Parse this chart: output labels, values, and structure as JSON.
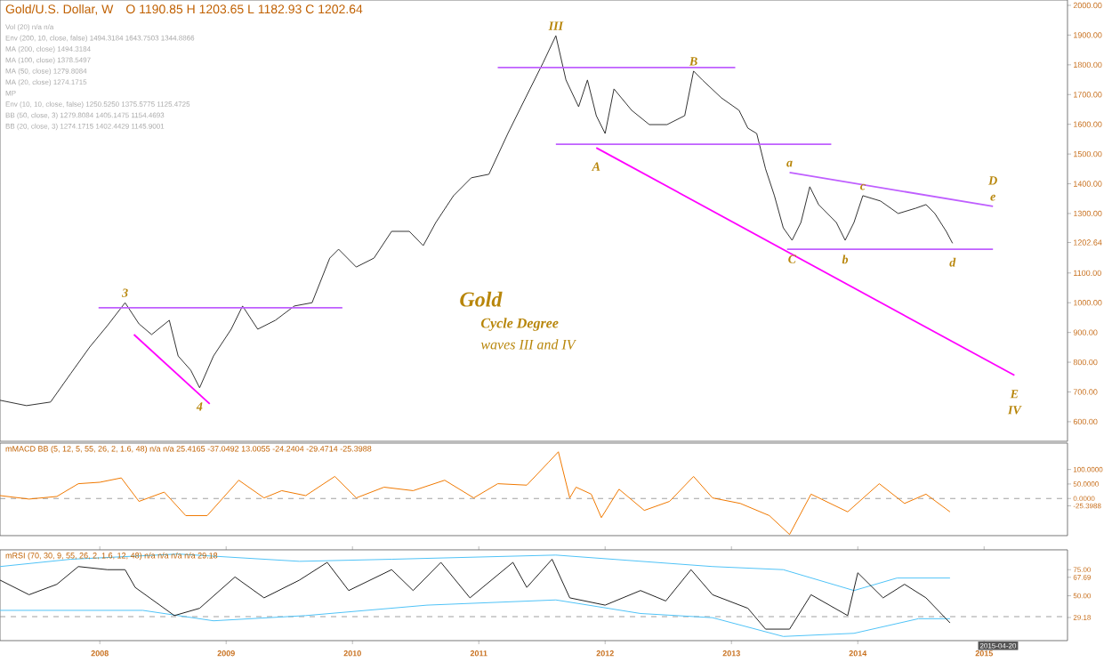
{
  "chart_data": [
    {
      "type": "line",
      "title": "Gold/U.S. Dollar, W",
      "subtitle": "O 1190.85 H 1203.65 L 1182.93 C 1202.64",
      "xlim": [
        2007.21,
        2015.66
      ],
      "ylim": [
        534,
        2018
      ],
      "tick_labels": "y",
      "yticks": [
        {
          "value": 600,
          "label": "600.00"
        },
        {
          "value": 700,
          "label": "700.00"
        },
        {
          "value": 800,
          "label": "800.00"
        },
        {
          "value": 900,
          "label": "900.00"
        },
        {
          "value": 1000,
          "label": "1000.00"
        },
        {
          "value": 1100,
          "label": "1100.00"
        },
        1202.64,
        {
          "value": 1300,
          "label": "1300.00"
        },
        {
          "value": 1400,
          "label": "1400.00"
        },
        {
          "value": 1500,
          "label": "1500.00"
        },
        {
          "value": 1600,
          "label": "1600.00"
        },
        {
          "value": 1700,
          "label": "1700.00"
        },
        {
          "value": 1800,
          "label": "1800.00"
        },
        {
          "value": 1900,
          "label": "1900.00"
        },
        {
          "value": 2000,
          "label": "2000.00"
        }
      ],
      "series": [
        {
          "color": "#333333",
          "x": [
            2007.21,
            2007.42,
            2007.61,
            2007.77,
            2007.92,
            2008.06,
            2008.2,
            2008.31,
            2008.41,
            2008.55,
            2008.62,
            2008.72,
            2008.79,
            2008.9,
            2009.04,
            2009.13,
            2009.25,
            2009.39,
            2009.54,
            2009.68,
            2009.82,
            2009.89,
            2010.03,
            2010.17,
            2010.31,
            2010.45,
            2010.56,
            2010.66,
            2010.8,
            2010.94,
            2011.08,
            2011.23,
            2011.37,
            2011.51,
            2011.61,
            2011.69,
            2011.79,
            2011.86,
            2011.93,
            2012.0,
            2012.07,
            2012.21,
            2012.35,
            2012.49,
            2012.63,
            2012.7,
            2012.77,
            2012.92,
            2013.06,
            2013.13,
            2013.2,
            2013.27,
            2013.34,
            2013.41,
            2013.48,
            2013.55,
            2013.62,
            2013.69,
            2013.76,
            2013.83,
            2013.9,
            2013.97,
            2014.04,
            2014.18,
            2014.32,
            2014.46,
            2014.54,
            2014.61,
            2014.7,
            2014.75
          ],
          "values": [
            672,
            654,
            666,
            762,
            851,
            923,
            1000,
            929,
            893,
            941,
            821,
            773,
            714,
            821,
            911,
            989,
            911,
            941,
            989,
            1000,
            1150,
            1180,
            1120,
            1150,
            1240,
            1240,
            1192,
            1270,
            1360,
            1420,
            1432,
            1569,
            1689,
            1808,
            1898,
            1749,
            1659,
            1749,
            1629,
            1569,
            1719,
            1647,
            1599,
            1599,
            1629,
            1779,
            1749,
            1689,
            1647,
            1587,
            1569,
            1450,
            1360,
            1252,
            1210,
            1270,
            1390,
            1330,
            1300,
            1270,
            1210,
            1270,
            1360,
            1342,
            1300,
            1318,
            1330,
            1300,
            1240,
            1200
          ]
        },
        {
          "color": "#bf5fff",
          "x": [
            2007.99,
            2009.92
          ],
          "values": [
            983,
            983
          ]
        },
        {
          "color": "#ff00ff",
          "x": [
            2008.27,
            2008.87
          ],
          "values": [
            893,
            660
          ]
        },
        {
          "color": "#bf5fff",
          "x": [
            2011.15,
            2013.03
          ],
          "values": [
            1791,
            1791
          ]
        },
        {
          "color": "#bf5fff",
          "x": [
            2011.61,
            2013.79
          ],
          "values": [
            1533,
            1533
          ]
        },
        {
          "color": "#ff00ff",
          "x": [
            2011.93,
            2015.24
          ],
          "values": [
            1521,
            756
          ]
        },
        {
          "color": "#bf5fff",
          "x": [
            2013.46,
            2015.07
          ],
          "values": [
            1438,
            1324
          ]
        },
        {
          "color": "#bf5fff",
          "x": [
            2013.44,
            2015.07
          ],
          "values": [
            1180,
            1180
          ]
        }
      ],
      "annotations": [
        "Gold",
        "Cycle Degree",
        "waves III and IV",
        "Vol (20) n/a n/a",
        "Env (200, 10, close, false) 1494.3184 1643.7503 1344.8866",
        "MA (200, close) 1494.3184",
        "MA (100, close) 1378.5497",
        "MA (50, close) 1279.8084",
        "MA (20, close) 1274.1715",
        "MP",
        "Env (10, 10, close, false) 1250.5250 1375.5775 1125.4725",
        "BB (50, close, 3) 1279.8084 1405.1475 1154.4693",
        "BB (20, close, 3) 1274.1715 1402.4429 1145.9001",
        {
          "text": "3",
          "x": 2008.2,
          "y": 1000
        },
        {
          "text": "4",
          "x": 2008.79,
          "y": 714
        },
        {
          "text": "III",
          "x": 2011.61,
          "y": 1898
        },
        {
          "text": "B",
          "x": 2012.7,
          "y": 1779
        },
        {
          "text": "A",
          "x": 2011.93,
          "y": 1521
        },
        {
          "text": "a",
          "x": 2013.46,
          "y": 1438
        },
        {
          "text": "c",
          "x": 2014.04,
          "y": 1360
        },
        {
          "text": "C",
          "x": 2013.48,
          "y": 1210
        },
        {
          "text": "b",
          "x": 2013.9,
          "y": 1210
        },
        {
          "text": "d",
          "x": 2014.75,
          "y": 1200
        },
        {
          "text": "e",
          "x": 2015.07,
          "y": 1324
        },
        {
          "text": "D",
          "x": 2015.07,
          "y": 1324
        },
        {
          "text": "E",
          "x": 2015.24,
          "y": 756
        },
        {
          "text": "IV",
          "x": 2015.24,
          "y": 756
        }
      ]
    },
    {
      "type": "line",
      "title": "mMACD BB (5, 12, 5, 55, 26, 2, 1.6, 48)   n/a  n/a  25.4165  -37.0492  13.0055  -24.2404  -29.4714  -25.3988",
      "xlim": [
        2007.21,
        2015.66
      ],
      "ylim": [
        -128,
        191
      ],
      "tick_labels": "y",
      "yticks": [
        {
          "value": 100,
          "label": "100.0000"
        },
        {
          "value": 50,
          "label": "50.0000"
        },
        {
          "value": 0,
          "label": "0.0000"
        },
        -25.3988
      ],
      "ref_lines": [
        {
          "axis": "y",
          "value": 0,
          "color": "#888888",
          "line_style": "dashed"
        }
      ],
      "series": [
        {
          "color": "#f07800",
          "x": [
            2007.21,
            2007.44,
            2007.66,
            2007.83,
            2008.0,
            2008.17,
            2008.31,
            2008.51,
            2008.68,
            2008.85,
            2009.1,
            2009.3,
            2009.44,
            2009.63,
            2009.86,
            2010.03,
            2010.25,
            2010.48,
            2010.73,
            2010.96,
            2011.15,
            2011.38,
            2011.55,
            2011.63,
            2011.72,
            2011.77,
            2011.89,
            2011.97,
            2012.11,
            2012.31,
            2012.51,
            2012.7,
            2012.85,
            2013.07,
            2013.3,
            2013.46,
            2013.63,
            2013.92,
            2014.17,
            2014.37,
            2014.54,
            2014.73
          ],
          "values": [
            10,
            -2,
            7,
            51,
            56,
            71,
            -10,
            22,
            -59,
            -59,
            63,
            2,
            27,
            10,
            76,
            2,
            39,
            27,
            63,
            2,
            51,
            46,
            124,
            161,
            2,
            39,
            15,
            -66,
            32,
            -41,
            -10,
            76,
            2,
            -17,
            -59,
            -124,
            15,
            -46,
            51,
            -17,
            15,
            -46
          ]
        }
      ]
    },
    {
      "type": "line",
      "title": "mRSI (70, 30, 9, 55, 26, 2, 1.6, 12, 48)   n/a  n/a  n/a  n/a  29.18",
      "xlim": [
        2007.21,
        2015.66
      ],
      "ylim": [
        7,
        94
      ],
      "xticks": [
        2008,
        2009,
        2010,
        2011,
        2012,
        2013,
        2014,
        2015
      ],
      "yticks": [
        {
          "value": 75,
          "label": "75.00"
        },
        67.69,
        {
          "value": 50,
          "label": "50.00"
        },
        29.18
      ],
      "ref_lines": [
        {
          "axis": "y",
          "value": 30,
          "color": "#888888",
          "line_style": "dashed"
        }
      ],
      "annotations": [
        "2015-04-20"
      ],
      "series": [
        {
          "color": "#4fc3f7",
          "x": [
            2007.21,
            2007.77,
            2008.62,
            2009.58,
            2010.31,
            2011.61,
            2012.85,
            2013.41,
            2013.97,
            2014.31,
            2014.73
          ],
          "values": [
            78,
            85,
            90,
            83,
            85,
            89,
            78,
            75,
            55,
            67,
            67
          ]
        },
        {
          "color": "#4fc3f7",
          "x": [
            2007.21,
            2008.34,
            2008.9,
            2009.63,
            2010.59,
            2011.61,
            2012.28,
            2012.85,
            2013.41,
            2013.97,
            2014.48,
            2014.73
          ],
          "values": [
            36,
            36,
            26,
            31,
            41,
            46,
            33,
            29,
            11,
            14,
            28,
            28
          ]
        },
        {
          "color": "#222222",
          "x": [
            2007.21,
            2007.44,
            2007.66,
            2007.83,
            2008.06,
            2008.2,
            2008.28,
            2008.59,
            2008.79,
            2009.07,
            2009.3,
            2009.58,
            2009.8,
            2009.97,
            2010.31,
            2010.48,
            2010.7,
            2010.93,
            2011.27,
            2011.38,
            2011.58,
            2011.72,
            2012.0,
            2012.28,
            2012.48,
            2012.68,
            2012.85,
            2013.13,
            2013.27,
            2013.46,
            2013.63,
            2013.92,
            2014.0,
            2014.2,
            2014.37,
            2014.54,
            2014.73
          ],
          "values": [
            65,
            51,
            61,
            78,
            75,
            75,
            58,
            31,
            38,
            68,
            48,
            65,
            82,
            55,
            75,
            55,
            82,
            48,
            82,
            58,
            85,
            48,
            41,
            55,
            45,
            75,
            51,
            38,
            18,
            18,
            51,
            31,
            72,
            48,
            61,
            48,
            24
          ]
        }
      ]
    }
  ]
}
